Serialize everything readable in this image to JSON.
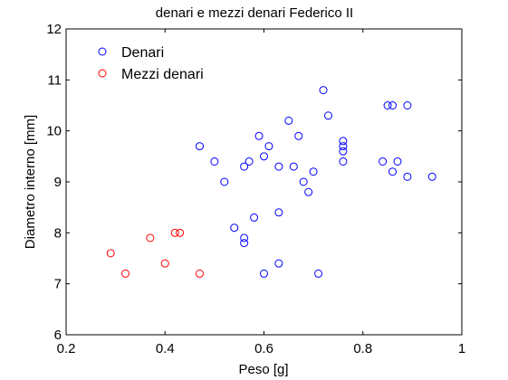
{
  "chart_data": {
    "type": "scatter",
    "title": "denari e mezzi denari Federico II",
    "xlabel": "Peso [g]",
    "ylabel": "Diametro interno [mm]",
    "xlim": [
      0.2,
      1.0
    ],
    "ylim": [
      6,
      12
    ],
    "xticks": [
      0.2,
      0.4,
      0.6,
      0.8,
      1.0
    ],
    "xtick_labels": [
      "0.2",
      "0.4",
      "0.6",
      "0.8",
      "1"
    ],
    "yticks": [
      6,
      7,
      8,
      9,
      10,
      11,
      12
    ],
    "ytick_labels": [
      "6",
      "7",
      "8",
      "9",
      "10",
      "11",
      "12"
    ],
    "grid": false,
    "legend_position": "top-left",
    "series": [
      {
        "name": "Denari",
        "color": "#0000ff",
        "marker": "open-circle",
        "points": [
          [
            0.47,
            9.7
          ],
          [
            0.5,
            9.4
          ],
          [
            0.52,
            9.0
          ],
          [
            0.54,
            8.1
          ],
          [
            0.56,
            7.9
          ],
          [
            0.56,
            7.8
          ],
          [
            0.56,
            9.3
          ],
          [
            0.57,
            9.4
          ],
          [
            0.58,
            8.3
          ],
          [
            0.59,
            9.9
          ],
          [
            0.6,
            9.5
          ],
          [
            0.6,
            7.2
          ],
          [
            0.61,
            9.7
          ],
          [
            0.63,
            9.3
          ],
          [
            0.63,
            8.4
          ],
          [
            0.63,
            7.4
          ],
          [
            0.65,
            10.2
          ],
          [
            0.66,
            9.3
          ],
          [
            0.67,
            9.9
          ],
          [
            0.68,
            9.0
          ],
          [
            0.69,
            8.8
          ],
          [
            0.7,
            9.2
          ],
          [
            0.71,
            7.2
          ],
          [
            0.72,
            10.8
          ],
          [
            0.73,
            10.3
          ],
          [
            0.76,
            9.8
          ],
          [
            0.76,
            9.7
          ],
          [
            0.76,
            9.6
          ],
          [
            0.76,
            9.4
          ],
          [
            0.84,
            9.4
          ],
          [
            0.85,
            10.5
          ],
          [
            0.86,
            10.5
          ],
          [
            0.86,
            9.2
          ],
          [
            0.87,
            9.4
          ],
          [
            0.89,
            10.5
          ],
          [
            0.89,
            9.1
          ],
          [
            0.94,
            9.1
          ]
        ]
      },
      {
        "name": "Mezzi denari",
        "color": "#ff0000",
        "marker": "open-circle",
        "points": [
          [
            0.29,
            7.6
          ],
          [
            0.32,
            7.2
          ],
          [
            0.37,
            7.9
          ],
          [
            0.4,
            7.4
          ],
          [
            0.42,
            8.0
          ],
          [
            0.43,
            8.0
          ],
          [
            0.47,
            7.2
          ]
        ]
      }
    ]
  }
}
